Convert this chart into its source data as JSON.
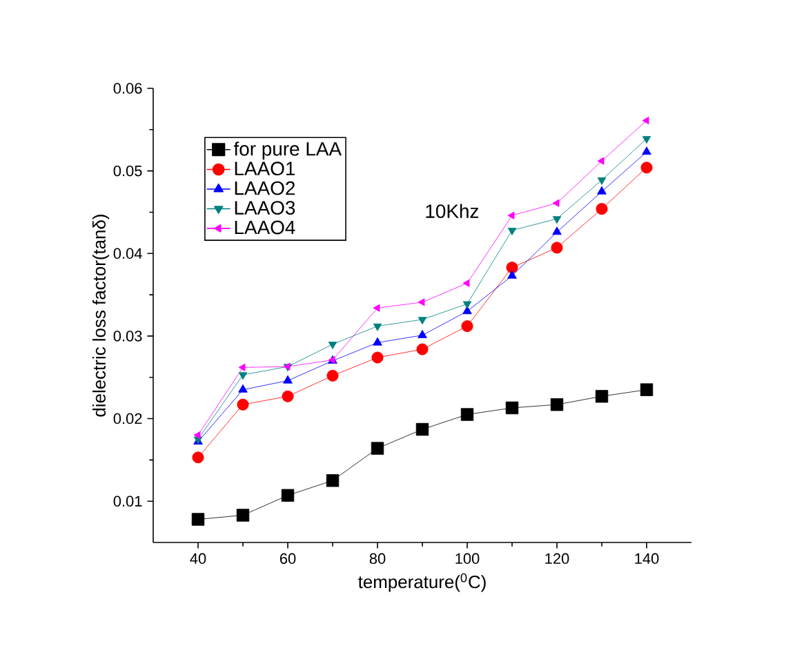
{
  "chart_data": {
    "type": "line",
    "xlabel": "temperature($^{0}$C)",
    "ylabel": "dielectric loss factor(tanδ)",
    "annotations": [
      "10Khz"
    ],
    "x": [
      40,
      50,
      60,
      70,
      80,
      90,
      100,
      110,
      120,
      130,
      140
    ],
    "xlim": [
      30,
      150
    ],
    "xticks": [
      40,
      60,
      80,
      100,
      120,
      140
    ],
    "ylim": [
      0.005,
      0.06
    ],
    "yticks": [
      0.01,
      0.02,
      0.03,
      0.04,
      0.05,
      0.06
    ],
    "grid": false,
    "legend": "top left",
    "series": [
      {
        "name": "for pure LAA",
        "color": "#000000",
        "marker": "square",
        "values": [
          0.0078,
          0.0083,
          0.0107,
          0.0125,
          0.0164,
          0.0187,
          0.0205,
          0.0213,
          0.0217,
          0.0227,
          0.0235
        ]
      },
      {
        "name": "LAAO1",
        "color": "#ff0000",
        "marker": "circle",
        "values": [
          0.0153,
          0.0217,
          0.0227,
          0.0252,
          0.0274,
          0.0284,
          0.0312,
          0.0383,
          0.0407,
          0.0454,
          0.0504
        ]
      },
      {
        "name": "LAAO2",
        "color": "#0000ff",
        "marker": "triangle",
        "values": [
          0.0172,
          0.0235,
          0.0246,
          0.027,
          0.0292,
          0.0301,
          0.033,
          0.0373,
          0.0426,
          0.0475,
          0.0523
        ]
      },
      {
        "name": "LAAO3",
        "color": "#008080",
        "marker": "triangle-down",
        "values": [
          0.0175,
          0.0253,
          0.0263,
          0.029,
          0.0312,
          0.032,
          0.0339,
          0.0428,
          0.0442,
          0.0489,
          0.0539
        ]
      },
      {
        "name": "LAAO4",
        "color": "#ff00ff",
        "marker": "triangle-left",
        "values": [
          0.018,
          0.0262,
          0.0263,
          0.0271,
          0.0334,
          0.0341,
          0.0364,
          0.0446,
          0.0461,
          0.0512,
          0.0561
        ]
      }
    ]
  }
}
